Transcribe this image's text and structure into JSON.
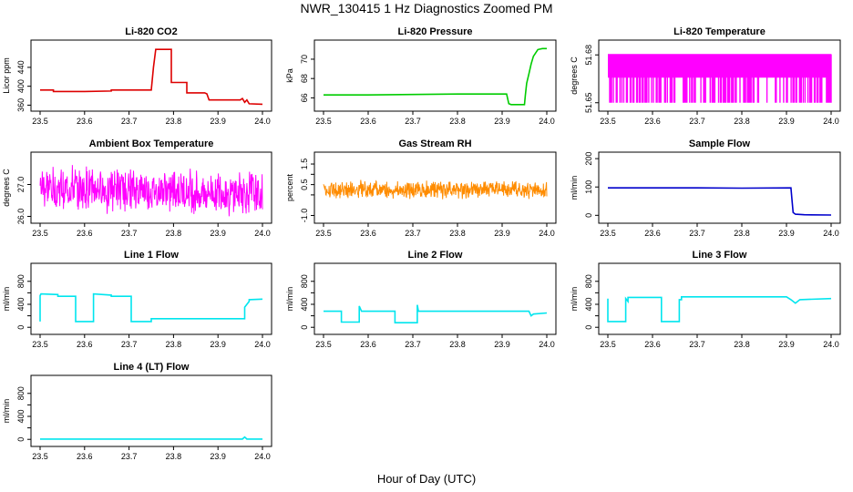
{
  "page": {
    "title": "NWR_130415  1 Hz Diagnostics Zoomed PM",
    "xlabel": "Hour of Day (UTC)"
  },
  "chart_data": [
    {
      "type": "line",
      "title": "Li-820 CO2",
      "ylabel": "Licor ppm",
      "color": "#dd0000",
      "xlim": [
        23.5,
        24.0
      ],
      "ylim": [
        355,
        490
      ],
      "xticks": [
        "23.5",
        "23.6",
        "23.7",
        "23.8",
        "23.9",
        "24.0"
      ],
      "yticks": [
        360,
        400,
        440
      ],
      "series": [
        {
          "x": [
            23.5,
            23.53,
            23.53,
            23.6,
            23.66,
            23.66,
            23.75,
            23.755,
            23.76,
            23.76,
            23.795,
            23.795,
            23.83,
            23.83,
            23.87,
            23.875,
            23.88,
            23.88,
            23.95,
            23.955,
            23.96,
            23.965,
            23.97,
            23.97,
            24.0
          ],
          "y": [
            392,
            392,
            389,
            389,
            390,
            392,
            392,
            440,
            478,
            478,
            478,
            408,
            408,
            386,
            386,
            384,
            371,
            371,
            371,
            374,
            366,
            371,
            363,
            363,
            362
          ]
        }
      ]
    },
    {
      "type": "line",
      "title": "Li-820 Pressure",
      "ylabel": "kPa",
      "color": "#00cc00",
      "xlim": [
        23.5,
        24.0
      ],
      "ylim": [
        65.0,
        71.6
      ],
      "xticks": [
        "23.5",
        "23.6",
        "23.7",
        "23.8",
        "23.9",
        "24.0"
      ],
      "yticks": [
        66,
        68,
        70
      ],
      "series": [
        {
          "x": [
            23.5,
            23.6,
            23.7,
            23.8,
            23.91,
            23.915,
            23.92,
            23.95,
            23.952,
            23.955,
            23.96,
            23.965,
            23.97,
            23.98,
            23.99,
            24.0
          ],
          "y": [
            66.3,
            66.3,
            66.35,
            66.4,
            66.4,
            65.4,
            65.3,
            65.3,
            66.3,
            67.5,
            68.5,
            69.5,
            70.3,
            71.0,
            71.1,
            71.1
          ]
        }
      ]
    },
    {
      "type": "line",
      "title": "Li-820 Temperature",
      "ylabel": "degrees C",
      "color": "#ff00ff",
      "xlim": [
        23.5,
        24.0
      ],
      "ylim": [
        51.647,
        51.687
      ],
      "xticks": [
        "23.5",
        "23.6",
        "23.7",
        "23.8",
        "23.9",
        "24.0"
      ],
      "yticks": [
        51.65,
        51.68
      ],
      "ytick_labels": [
        "51.65",
        "51.68"
      ],
      "levels": [
        51.68,
        51.65
      ]
    },
    {
      "type": "line",
      "title": "Ambient Box Temperature",
      "ylabel": "degrees C",
      "color": "#ff00ff",
      "xlim": [
        23.5,
        24.0
      ],
      "ylim": [
        25.9,
        27.9
      ],
      "xticks": [
        "23.5",
        "23.6",
        "23.7",
        "23.8",
        "23.9",
        "24.0"
      ],
      "yticks": [
        26.0,
        27.0
      ],
      "ytick_labels": [
        "26.0",
        "27.0"
      ],
      "mean": 26.9,
      "spread": 0.7
    },
    {
      "type": "line",
      "title": "Gas Stream RH",
      "ylabel": "percent",
      "color": "#ff8c00",
      "xlim": [
        23.5,
        24.0
      ],
      "ylim": [
        -1.2,
        1.9
      ],
      "xticks": [
        "23.5",
        "23.6",
        "23.7",
        "23.8",
        "23.9",
        "24.0"
      ],
      "yticks": [
        -1.0,
        0.0,
        0.5,
        1.0,
        1.5
      ],
      "ytick_labels": [
        "-1.0",
        "0.5",
        "1.5"
      ],
      "ytick_label_values": [
        -1.0,
        0.5,
        1.5
      ],
      "mean": 0.25,
      "spread": 0.45
    },
    {
      "type": "line",
      "title": "Sample Flow",
      "ylabel": "ml/min",
      "color": "#0000cc",
      "xlim": [
        23.5,
        24.0
      ],
      "ylim": [
        -15,
        210
      ],
      "xticks": [
        "23.5",
        "23.6",
        "23.7",
        "23.8",
        "23.9",
        "24.0"
      ],
      "yticks": [
        0,
        100,
        200
      ],
      "series": [
        {
          "x": [
            23.5,
            23.7,
            23.8,
            23.91,
            23.912,
            23.915,
            23.92,
            23.94,
            24.0
          ],
          "y": [
            97,
            97,
            96,
            97,
            60,
            10,
            4,
            2,
            1
          ]
        }
      ]
    },
    {
      "type": "line",
      "title": "Line 1 Flow",
      "ylabel": "ml/min",
      "color": "#00e5ee",
      "xlim": [
        23.5,
        24.0
      ],
      "ylim": [
        -60,
        1050
      ],
      "xticks": [
        "23.5",
        "23.6",
        "23.7",
        "23.8",
        "23.9",
        "24.0"
      ],
      "yticks": [
        0,
        200,
        400,
        600,
        800
      ],
      "ytick_labels": [
        "0",
        "400",
        "800"
      ],
      "ytick_label_values": [
        0,
        400,
        800
      ],
      "series": [
        {
          "x": [
            23.5,
            23.5,
            23.502,
            23.54,
            23.54,
            23.58,
            23.58,
            23.62,
            23.62,
            23.62,
            23.66,
            23.66,
            23.705,
            23.705,
            23.71,
            23.75,
            23.75,
            23.96,
            23.96,
            23.97,
            23.97,
            24.0
          ],
          "y": [
            100,
            550,
            580,
            570,
            540,
            540,
            100,
            100,
            520,
            580,
            560,
            540,
            540,
            100,
            100,
            100,
            150,
            150,
            350,
            450,
            480,
            490
          ]
        }
      ]
    },
    {
      "type": "line",
      "title": "Line 2 Flow",
      "ylabel": "ml/min",
      "color": "#00e5ee",
      "xlim": [
        23.5,
        24.0
      ],
      "ylim": [
        -60,
        1050
      ],
      "xticks": [
        "23.5",
        "23.6",
        "23.7",
        "23.8",
        "23.9",
        "24.0"
      ],
      "yticks": [
        0,
        200,
        400,
        600,
        800
      ],
      "ytick_labels": [
        "0",
        "400",
        "800"
      ],
      "ytick_label_values": [
        0,
        400,
        800
      ],
      "series": [
        {
          "x": [
            23.5,
            23.54,
            23.54,
            23.58,
            23.58,
            23.585,
            23.585,
            23.66,
            23.66,
            23.71,
            23.71,
            23.712,
            23.712,
            23.96,
            23.965,
            23.97,
            24.0
          ],
          "y": [
            280,
            280,
            90,
            90,
            370,
            280,
            280,
            280,
            80,
            80,
            390,
            300,
            280,
            280,
            200,
            230,
            250
          ]
        }
      ]
    },
    {
      "type": "line",
      "title": "Line 3 Flow",
      "ylabel": "ml/min",
      "color": "#00e5ee",
      "xlim": [
        23.5,
        24.0
      ],
      "ylim": [
        -60,
        1050
      ],
      "xticks": [
        "23.5",
        "23.6",
        "23.7",
        "23.8",
        "23.9",
        "24.0"
      ],
      "yticks": [
        0,
        200,
        400,
        600,
        800
      ],
      "ytick_labels": [
        "0",
        "400",
        "800"
      ],
      "ytick_label_values": [
        0,
        400,
        800
      ],
      "series": [
        {
          "x": [
            23.5,
            23.5,
            23.502,
            23.54,
            23.54,
            23.545,
            23.545,
            23.62,
            23.62,
            23.66,
            23.66,
            23.665,
            23.665,
            23.9,
            23.91,
            23.92,
            23.93,
            24.0
          ],
          "y": [
            500,
            100,
            100,
            100,
            500,
            450,
            520,
            520,
            100,
            100,
            480,
            480,
            530,
            530,
            480,
            420,
            480,
            500
          ]
        }
      ]
    },
    {
      "type": "line",
      "title": "Line 4 (LT) Flow",
      "ylabel": "ml/min",
      "color": "#00e5ee",
      "xlim": [
        23.5,
        24.0
      ],
      "ylim": [
        -60,
        1050
      ],
      "xticks": [
        "23.5",
        "23.6",
        "23.7",
        "23.8",
        "23.9",
        "24.0"
      ],
      "yticks": [
        0,
        200,
        400,
        600,
        800
      ],
      "ytick_labels": [
        "0",
        "400",
        "800"
      ],
      "ytick_label_values": [
        0,
        400,
        800
      ],
      "series": [
        {
          "x": [
            23.5,
            23.955,
            23.96,
            23.965,
            24.0
          ],
          "y": [
            5,
            5,
            40,
            5,
            5
          ]
        }
      ]
    }
  ]
}
